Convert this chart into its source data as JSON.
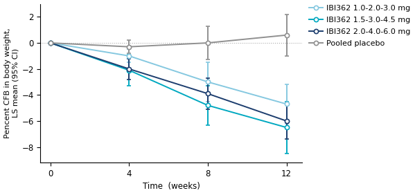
{
  "x": [
    0,
    4,
    8,
    12
  ],
  "series": [
    {
      "label": "IBI362 1.0-2.0-3.0 mg",
      "color": "#85c8e0",
      "linestyle": "solid",
      "linewidth": 1.4,
      "means": [
        0,
        -1.0,
        -3.0,
        -4.7
      ],
      "ci_low": [
        0,
        -1.5,
        -4.5,
        -6.2
      ],
      "ci_high": [
        0,
        -0.5,
        -1.5,
        -3.2
      ]
    },
    {
      "label": "IBI362 1.5-3.0-4.5 mg",
      "color": "#00a8c0",
      "linestyle": "solid",
      "linewidth": 1.4,
      "means": [
        0,
        -2.1,
        -4.8,
        -6.5
      ],
      "ci_low": [
        0,
        -3.3,
        -6.3,
        -8.5
      ],
      "ci_high": [
        0,
        -0.9,
        -3.3,
        -4.5
      ]
    },
    {
      "label": "IBI362 2.0-4.0-6.0 mg",
      "color": "#1c3d6e",
      "linestyle": "solid",
      "linewidth": 1.4,
      "means": [
        0,
        -2.0,
        -3.9,
        -6.0
      ],
      "ci_low": [
        0,
        -2.8,
        -5.1,
        -7.4
      ],
      "ci_high": [
        0,
        -1.2,
        -2.7,
        -4.6
      ]
    },
    {
      "label": "Pooled placebo",
      "color": "#909090",
      "linestyle": "solid",
      "linewidth": 1.4,
      "means": [
        0,
        -0.3,
        0.0,
        0.6
      ],
      "ci_low": [
        0,
        -0.8,
        -1.3,
        -1.0
      ],
      "ci_high": [
        0,
        0.2,
        1.3,
        2.2
      ]
    }
  ],
  "hline_color": "#aaaaaa",
  "hline_style": "dotted",
  "xlabel": "Time  (weeks)",
  "ylabel": "Pencent CFB in body weight,\nLS mean (95% CI)",
  "xlim": [
    -0.5,
    12.8
  ],
  "ylim": [
    -9.2,
    3.0
  ],
  "xticks": [
    0,
    4,
    8,
    12
  ],
  "yticks": [
    -8,
    -6,
    -4,
    -2,
    0,
    2
  ],
  "background_color": "#ffffff",
  "marker": "o",
  "marker_size": 4.5,
  "marker_facecolor": "white",
  "marker_edge_width": 1.2,
  "capsize": 2.5,
  "legend_fontsize": 8.0,
  "axis_fontsize": 8.5,
  "label_fontsize": 8.0
}
